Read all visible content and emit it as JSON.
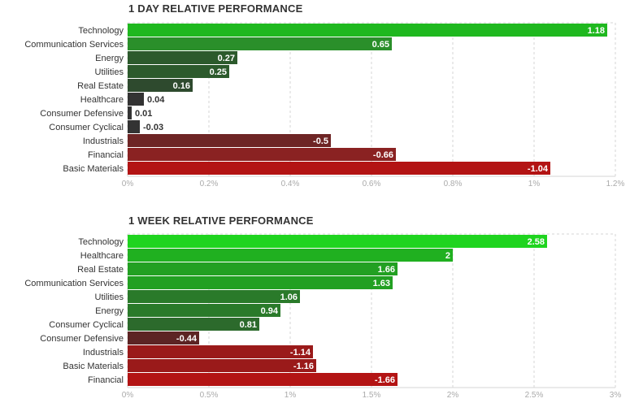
{
  "chart_data": [
    {
      "type": "bar",
      "orientation": "horizontal",
      "title": "1 DAY RELATIVE PERFORMANCE",
      "categories": [
        "Technology",
        "Communication Services",
        "Energy",
        "Utilities",
        "Real Estate",
        "Healthcare",
        "Consumer Defensive",
        "Consumer Cyclical",
        "Industrials",
        "Financial",
        "Basic Materials"
      ],
      "values": [
        1.18,
        0.65,
        0.27,
        0.25,
        0.16,
        0.04,
        0.01,
        -0.03,
        -0.5,
        -0.66,
        -1.04
      ],
      "value_labels": [
        "1.18",
        "0.65",
        "0.27",
        "0.25",
        "0.16",
        "0.04",
        "0.01",
        "-0.03",
        "-0.5",
        "-0.66",
        "-1.04"
      ],
      "colors": [
        "#1fb81f",
        "#2a8f2a",
        "#2c5a2c",
        "#2c5a2c",
        "#2e4a2e",
        "#333333",
        "#333333",
        "#333333",
        "#6e2525",
        "#8a2222",
        "#b31414"
      ],
      "xticks": [
        "0%",
        "0.2%",
        "0.4%",
        "0.6%",
        "0.8%",
        "1%",
        "1.2%"
      ],
      "xlim": [
        0,
        1.2
      ],
      "bar_length": "absolute value",
      "grid": true
    },
    {
      "type": "bar",
      "orientation": "horizontal",
      "title": "1 WEEK RELATIVE PERFORMANCE",
      "categories": [
        "Technology",
        "Healthcare",
        "Real Estate",
        "Communication Services",
        "Utilities",
        "Energy",
        "Consumer Cyclical",
        "Consumer Defensive",
        "Industrials",
        "Basic Materials",
        "Financial"
      ],
      "values": [
        2.58,
        2,
        1.66,
        1.63,
        1.06,
        0.94,
        0.81,
        -0.44,
        -1.14,
        -1.16,
        -1.66
      ],
      "value_labels": [
        "2.58",
        "2",
        "1.66",
        "1.63",
        "1.06",
        "0.94",
        "0.81",
        "-0.44",
        "-1.14",
        "-1.16",
        "-1.66"
      ],
      "colors": [
        "#1fd41f",
        "#20b020",
        "#22a022",
        "#22a022",
        "#2a7a2a",
        "#2a7a2a",
        "#2c6a2c",
        "#5c2424",
        "#9a1a1a",
        "#9a1a1a",
        "#b31414"
      ],
      "xticks": [
        "0%",
        "0.5%",
        "1%",
        "1.5%",
        "2%",
        "2.5%",
        "3%"
      ],
      "xlim": [
        0,
        3
      ],
      "bar_length": "absolute value",
      "grid": true
    }
  ]
}
